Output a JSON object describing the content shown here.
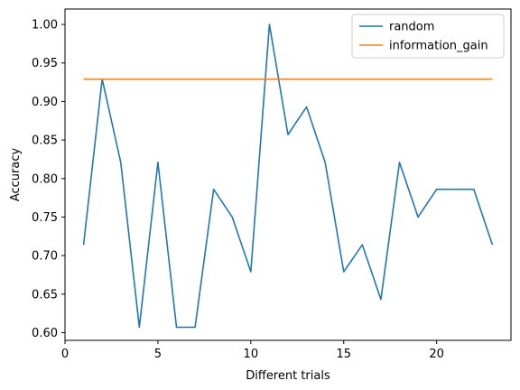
{
  "chart_data": {
    "type": "line",
    "title": "",
    "xlabel": "Different trials",
    "ylabel": "Accuracy",
    "xlim": [
      0,
      24
    ],
    "ylim": [
      0.59,
      1.02
    ],
    "xticks": [
      0,
      5,
      10,
      15,
      20
    ],
    "yticks": [
      0.6,
      0.65,
      0.7,
      0.75,
      0.8,
      0.85,
      0.9,
      0.95,
      1.0
    ],
    "xtick_labels": [
      "0",
      "5",
      "10",
      "15",
      "20"
    ],
    "ytick_labels": [
      "0.60",
      "0.65",
      "0.70",
      "0.75",
      "0.80",
      "0.85",
      "0.90",
      "0.95",
      "1.00"
    ],
    "grid": false,
    "legend_position": "top-right",
    "x": [
      1,
      2,
      3,
      4,
      5,
      6,
      7,
      8,
      9,
      10,
      11,
      12,
      13,
      14,
      15,
      16,
      17,
      18,
      19,
      20,
      21,
      22,
      23
    ],
    "series": [
      {
        "name": "random",
        "color": "#1f77b4",
        "values": [
          0.714,
          0.929,
          0.821,
          0.607,
          0.821,
          0.607,
          0.607,
          0.786,
          0.75,
          0.679,
          1.0,
          0.857,
          0.893,
          0.821,
          0.679,
          0.714,
          0.643,
          0.821,
          0.75,
          0.786,
          0.786,
          0.786,
          0.714
        ]
      },
      {
        "name": "information_gain",
        "color": "#ff7f0e",
        "values": [
          0.929,
          0.929,
          0.929,
          0.929,
          0.929,
          0.929,
          0.929,
          0.929,
          0.929,
          0.929,
          0.929,
          0.929,
          0.929,
          0.929,
          0.929,
          0.929,
          0.929,
          0.929,
          0.929,
          0.929,
          0.929,
          0.929,
          0.929
        ]
      }
    ]
  }
}
